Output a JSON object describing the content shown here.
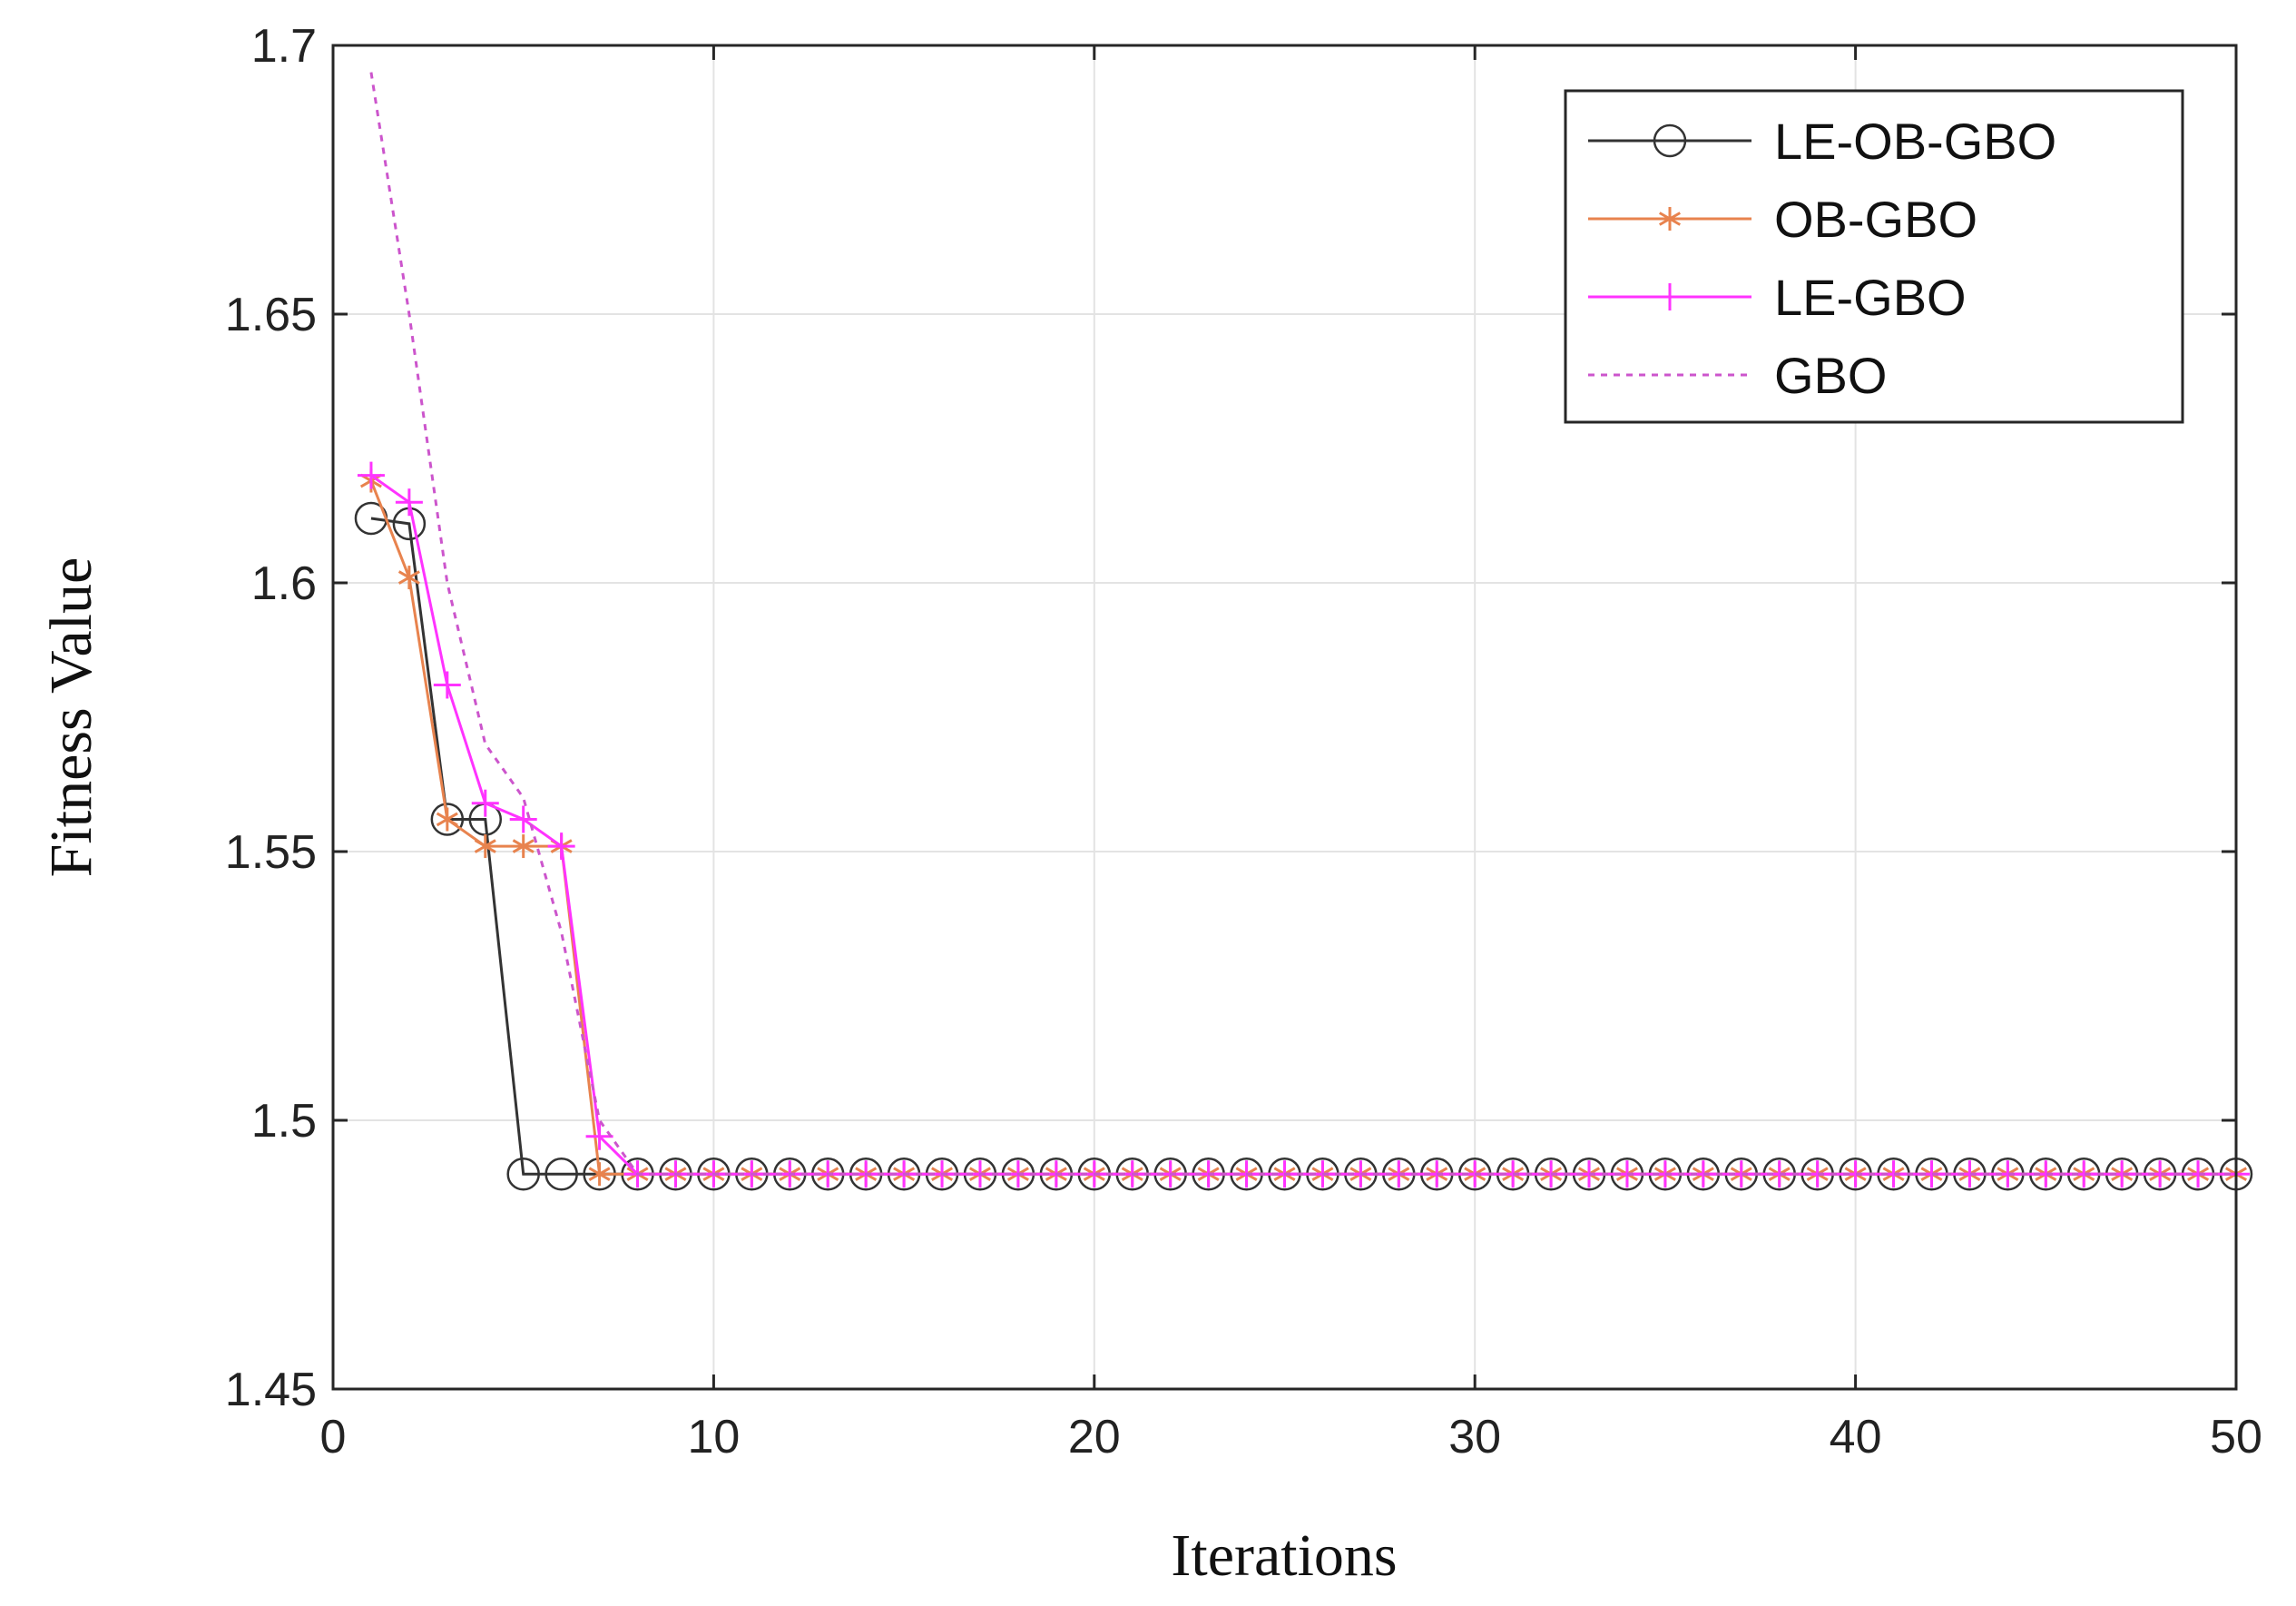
{
  "chart_data": {
    "type": "line",
    "title": "",
    "xlabel": "Iterations",
    "ylabel": "Fitness Value",
    "xlim": [
      0,
      50
    ],
    "ylim": [
      1.45,
      1.7
    ],
    "xticks": [
      "0",
      "10",
      "20",
      "30",
      "40",
      "50"
    ],
    "yticks": [
      "1.45",
      "1.5",
      "1.55",
      "1.6",
      "1.65",
      "1.7"
    ],
    "grid": true,
    "legend_position": "top-right",
    "x": [
      1,
      2,
      3,
      4,
      5,
      6,
      7,
      8,
      9,
      10,
      11,
      12,
      13,
      14,
      15,
      16,
      17,
      18,
      19,
      20,
      21,
      22,
      23,
      24,
      25,
      26,
      27,
      28,
      29,
      30,
      31,
      32,
      33,
      34,
      35,
      36,
      37,
      38,
      39,
      40,
      41,
      42,
      43,
      44,
      45,
      46,
      47,
      48,
      49,
      50
    ],
    "series": [
      {
        "name": "LE-OB-GBO",
        "color": "#333333",
        "marker": "circle",
        "dash": "solid",
        "values": [
          1.612,
          1.611,
          1.556,
          1.556,
          1.49,
          1.49,
          1.49,
          1.49,
          1.49,
          1.49,
          1.49,
          1.49,
          1.49,
          1.49,
          1.49,
          1.49,
          1.49,
          1.49,
          1.49,
          1.49,
          1.49,
          1.49,
          1.49,
          1.49,
          1.49,
          1.49,
          1.49,
          1.49,
          1.49,
          1.49,
          1.49,
          1.49,
          1.49,
          1.49,
          1.49,
          1.49,
          1.49,
          1.49,
          1.49,
          1.49,
          1.49,
          1.49,
          1.49,
          1.49,
          1.49,
          1.49,
          1.49,
          1.49,
          1.49,
          1.49
        ]
      },
      {
        "name": "OB-GBO",
        "color": "#e8834e",
        "marker": "asterisk",
        "dash": "solid",
        "values": [
          1.619,
          1.601,
          1.556,
          1.551,
          1.551,
          1.551,
          1.49,
          1.49,
          1.49,
          1.49,
          1.49,
          1.49,
          1.49,
          1.49,
          1.49,
          1.49,
          1.49,
          1.49,
          1.49,
          1.49,
          1.49,
          1.49,
          1.49,
          1.49,
          1.49,
          1.49,
          1.49,
          1.49,
          1.49,
          1.49,
          1.49,
          1.49,
          1.49,
          1.49,
          1.49,
          1.49,
          1.49,
          1.49,
          1.49,
          1.49,
          1.49,
          1.49,
          1.49,
          1.49,
          1.49,
          1.49,
          1.49,
          1.49,
          1.49,
          1.49
        ]
      },
      {
        "name": "LE-GBO",
        "color": "#ff33ff",
        "marker": "plus",
        "dash": "solid",
        "values": [
          1.62,
          1.615,
          1.581,
          1.559,
          1.556,
          1.551,
          1.497,
          1.49,
          1.49,
          1.49,
          1.49,
          1.49,
          1.49,
          1.49,
          1.49,
          1.49,
          1.49,
          1.49,
          1.49,
          1.49,
          1.49,
          1.49,
          1.49,
          1.49,
          1.49,
          1.49,
          1.49,
          1.49,
          1.49,
          1.49,
          1.49,
          1.49,
          1.49,
          1.49,
          1.49,
          1.49,
          1.49,
          1.49,
          1.49,
          1.49,
          1.49,
          1.49,
          1.49,
          1.49,
          1.49,
          1.49,
          1.49,
          1.49,
          1.49,
          1.49
        ]
      },
      {
        "name": "GBO",
        "color": "#cc55cc",
        "marker": "none",
        "dash": "dotted",
        "values": [
          1.695,
          1.65,
          1.6,
          1.57,
          1.56,
          1.535,
          1.5,
          1.49,
          1.49,
          1.49,
          1.49,
          1.49,
          1.49,
          1.49,
          1.49,
          1.49,
          1.49,
          1.49,
          1.49,
          1.49,
          1.49,
          1.49,
          1.49,
          1.49,
          1.49,
          1.49,
          1.49,
          1.49,
          1.49,
          1.49,
          1.49,
          1.49,
          1.49,
          1.49,
          1.49,
          1.49,
          1.49,
          1.49,
          1.49,
          1.49,
          1.49,
          1.49,
          1.49,
          1.49,
          1.49,
          1.49,
          1.49,
          1.49,
          1.49,
          1.49
        ]
      }
    ]
  }
}
